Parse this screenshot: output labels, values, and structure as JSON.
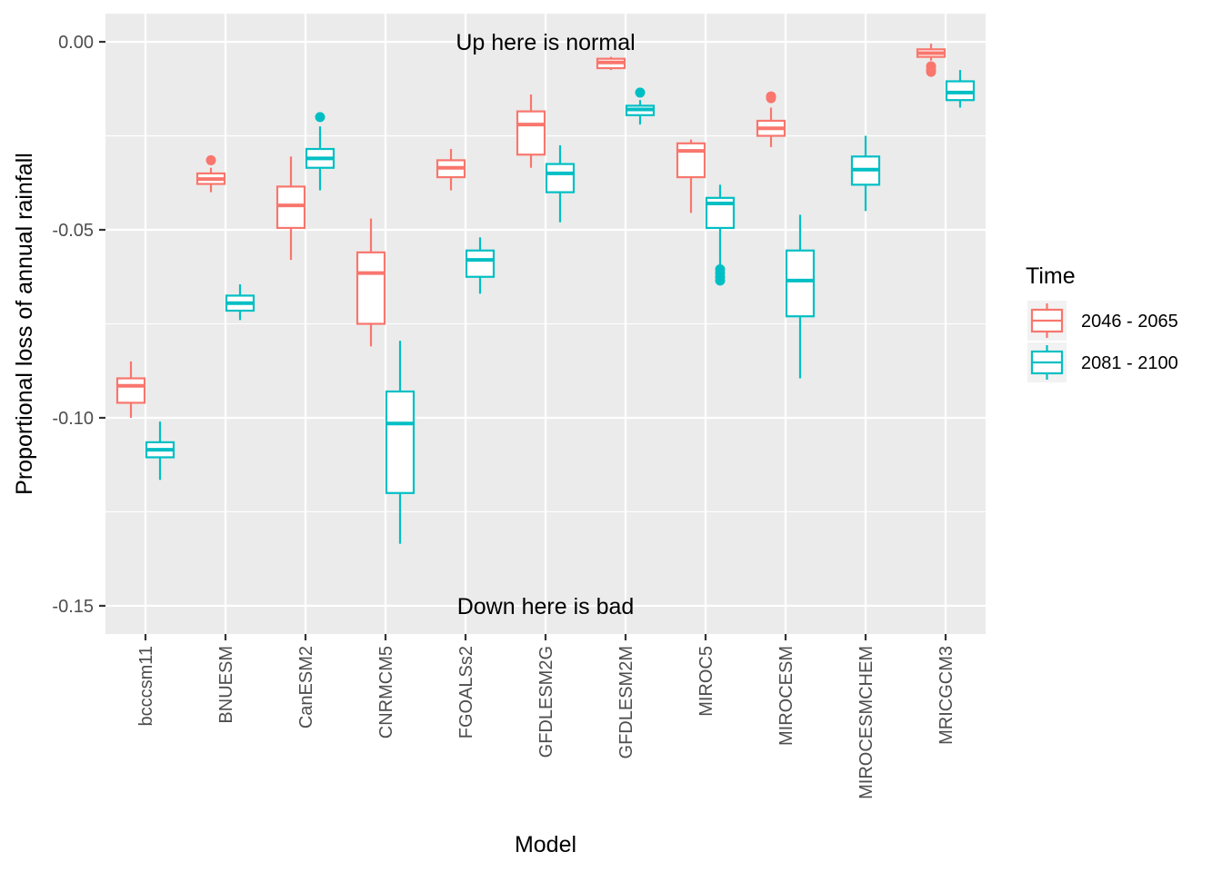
{
  "chart_data": {
    "type": "boxplot",
    "xlabel": "Model",
    "ylabel": "Proportional loss of annual rainfall",
    "ylim": [
      -0.1575,
      0.0075
    ],
    "yticks": [
      0.0,
      -0.05,
      -0.1,
      -0.15
    ],
    "ytick_labels": [
      "0.00",
      "-0.05",
      "-0.10",
      "-0.15"
    ],
    "categories": [
      "bcccsm11",
      "BNUESM",
      "CanESM2",
      "CNRMCM5",
      "FGOALSs2",
      "GFDLESM2G",
      "GFDLESM2M",
      "MIROC5",
      "MIROCESM",
      "MIROCESMCHEM",
      "MRICGCM3"
    ],
    "grid": true,
    "legend": {
      "title": "Time",
      "position": "right"
    },
    "annotations": [
      {
        "text": "Up here is normal",
        "x": "GFDLESM2G",
        "y": 0.0
      },
      {
        "text": "Down here is bad",
        "x": "GFDLESM2G",
        "y": -0.15
      }
    ],
    "series": [
      {
        "name": "2046 - 2065",
        "color": "#F8766D",
        "boxes": [
          {
            "category": "bcccsm11",
            "lower_whisker": -0.1,
            "q1": -0.096,
            "median": -0.0915,
            "q3": -0.0895,
            "upper_whisker": -0.085,
            "outliers": []
          },
          {
            "category": "BNUESM",
            "lower_whisker": -0.04,
            "q1": -0.0378,
            "median": -0.0365,
            "q3": -0.035,
            "upper_whisker": -0.0335,
            "outliers": [
              -0.0315
            ]
          },
          {
            "category": "CanESM2",
            "lower_whisker": -0.058,
            "q1": -0.0495,
            "median": -0.0435,
            "q3": -0.0385,
            "upper_whisker": -0.0305,
            "outliers": []
          },
          {
            "category": "CNRMCM5",
            "lower_whisker": -0.081,
            "q1": -0.075,
            "median": -0.0615,
            "q3": -0.056,
            "upper_whisker": -0.047,
            "outliers": []
          },
          {
            "category": "FGOALSs2",
            "lower_whisker": -0.0395,
            "q1": -0.036,
            "median": -0.0335,
            "q3": -0.0315,
            "upper_whisker": -0.0285,
            "outliers": []
          },
          {
            "category": "GFDLESM2G",
            "lower_whisker": -0.0335,
            "q1": -0.03,
            "median": -0.022,
            "q3": -0.0185,
            "upper_whisker": -0.014,
            "outliers": []
          },
          {
            "category": "GFDLESM2M",
            "lower_whisker": -0.0075,
            "q1": -0.007,
            "median": -0.0055,
            "q3": -0.0045,
            "upper_whisker": -0.004,
            "outliers": []
          },
          {
            "category": "MIROC5",
            "lower_whisker": -0.0455,
            "q1": -0.036,
            "median": -0.029,
            "q3": -0.027,
            "upper_whisker": -0.026,
            "outliers": []
          },
          {
            "category": "MIROCESM",
            "lower_whisker": -0.028,
            "q1": -0.025,
            "median": -0.023,
            "q3": -0.021,
            "upper_whisker": -0.0175,
            "outliers": [
              -0.0145,
              -0.015
            ]
          },
          {
            "category": "MRICGCM3",
            "lower_whisker": -0.005,
            "q1": -0.004,
            "median": -0.003,
            "q3": -0.002,
            "upper_whisker": -0.0005,
            "outliers": [
              -0.0065,
              -0.0075,
              -0.008
            ]
          }
        ]
      },
      {
        "name": "2081 - 2100",
        "color": "#00BFC4",
        "boxes": [
          {
            "category": "bcccsm11",
            "lower_whisker": -0.1165,
            "q1": -0.1105,
            "median": -0.1085,
            "q3": -0.1065,
            "upper_whisker": -0.101,
            "outliers": []
          },
          {
            "category": "BNUESM",
            "lower_whisker": -0.074,
            "q1": -0.0715,
            "median": -0.0695,
            "q3": -0.0675,
            "upper_whisker": -0.0645,
            "outliers": []
          },
          {
            "category": "CanESM2",
            "lower_whisker": -0.0395,
            "q1": -0.0335,
            "median": -0.031,
            "q3": -0.0285,
            "upper_whisker": -0.0225,
            "outliers": [
              -0.02
            ]
          },
          {
            "category": "CNRMCM5",
            "lower_whisker": -0.1335,
            "q1": -0.12,
            "median": -0.1015,
            "q3": -0.093,
            "upper_whisker": -0.0795,
            "outliers": []
          },
          {
            "category": "FGOALSs2",
            "lower_whisker": -0.067,
            "q1": -0.0625,
            "median": -0.058,
            "q3": -0.0555,
            "upper_whisker": -0.052,
            "outliers": []
          },
          {
            "category": "GFDLESM2G",
            "lower_whisker": -0.048,
            "q1": -0.04,
            "median": -0.035,
            "q3": -0.0325,
            "upper_whisker": -0.0275,
            "outliers": []
          },
          {
            "category": "GFDLESM2M",
            "lower_whisker": -0.022,
            "q1": -0.0195,
            "median": -0.018,
            "q3": -0.017,
            "upper_whisker": -0.0155,
            "outliers": [
              -0.0135
            ]
          },
          {
            "category": "MIROC5",
            "lower_whisker": -0.0595,
            "q1": -0.0495,
            "median": -0.043,
            "q3": -0.0415,
            "upper_whisker": -0.038,
            "outliers": [
              -0.0605,
              -0.0615,
              -0.0625,
              -0.0635
            ]
          },
          {
            "category": "MIROCESM",
            "lower_whisker": -0.0895,
            "q1": -0.073,
            "median": -0.0635,
            "q3": -0.0555,
            "upper_whisker": -0.046,
            "outliers": []
          },
          {
            "category": "MIROCESMCHEM",
            "lower_whisker": -0.045,
            "q1": -0.038,
            "median": -0.034,
            "q3": -0.0305,
            "upper_whisker": -0.025,
            "outliers": []
          },
          {
            "category": "MRICGCM3",
            "lower_whisker": -0.0175,
            "q1": -0.0155,
            "median": -0.0135,
            "q3": -0.0105,
            "upper_whisker": -0.0075,
            "outliers": []
          }
        ]
      }
    ]
  }
}
